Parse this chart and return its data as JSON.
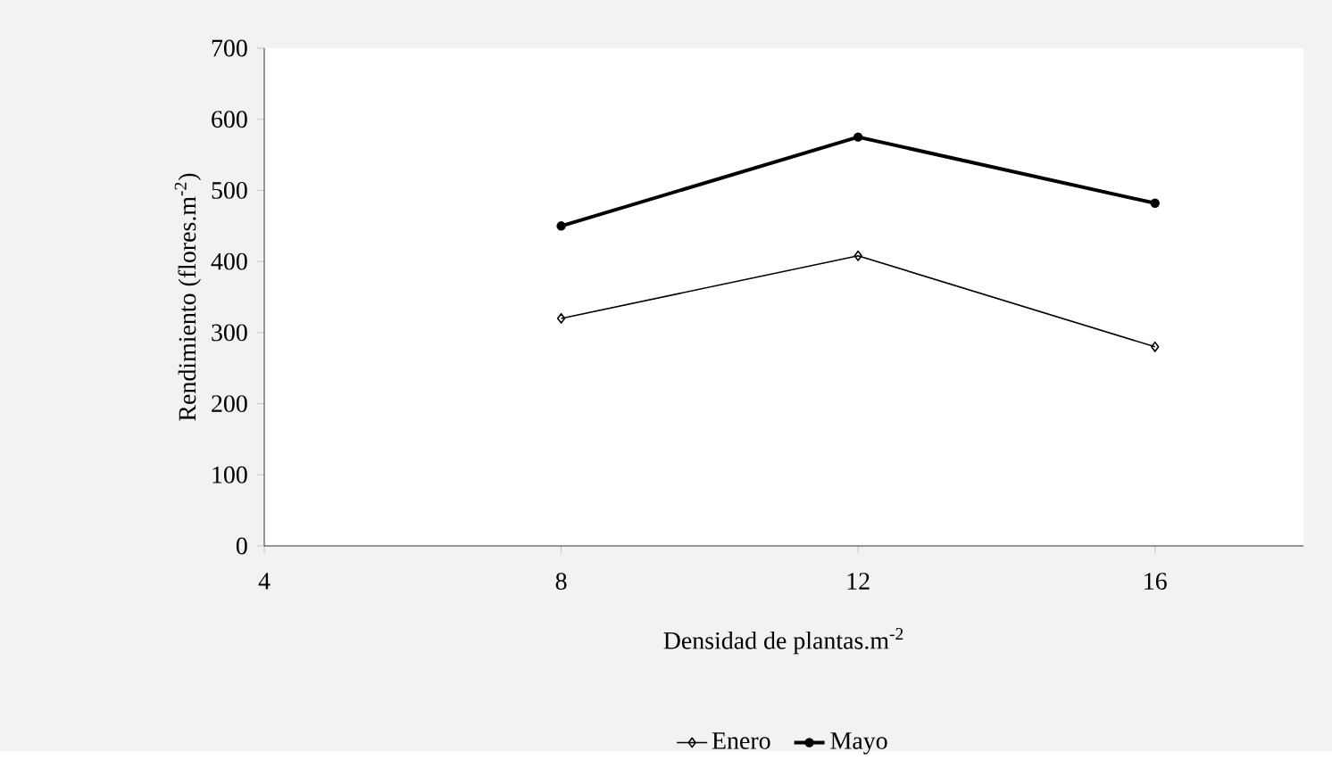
{
  "chart_data": {
    "type": "line",
    "xlabel": "Densidad de plantas.m$^{-2}$",
    "ylabel": "Rendimiento (flores.m$^{-2}$)",
    "x": [
      8,
      12,
      16
    ],
    "series": [
      {
        "name": "Enero",
        "color": "#000000",
        "values": [
          320,
          408,
          280
        ],
        "marker": "diamond"
      },
      {
        "name": "Mayo",
        "color": "#000000",
        "values": [
          450,
          575,
          482
        ],
        "marker": "circle"
      }
    ],
    "xlim": [
      4,
      18
    ],
    "xticks": [
      4,
      8,
      12,
      16
    ],
    "ylim": [
      0,
      700
    ],
    "yticks": [
      0,
      100,
      200,
      300,
      400,
      500,
      600,
      700
    ],
    "legend": "bottom",
    "grid": false,
    "line_style": "solid"
  }
}
